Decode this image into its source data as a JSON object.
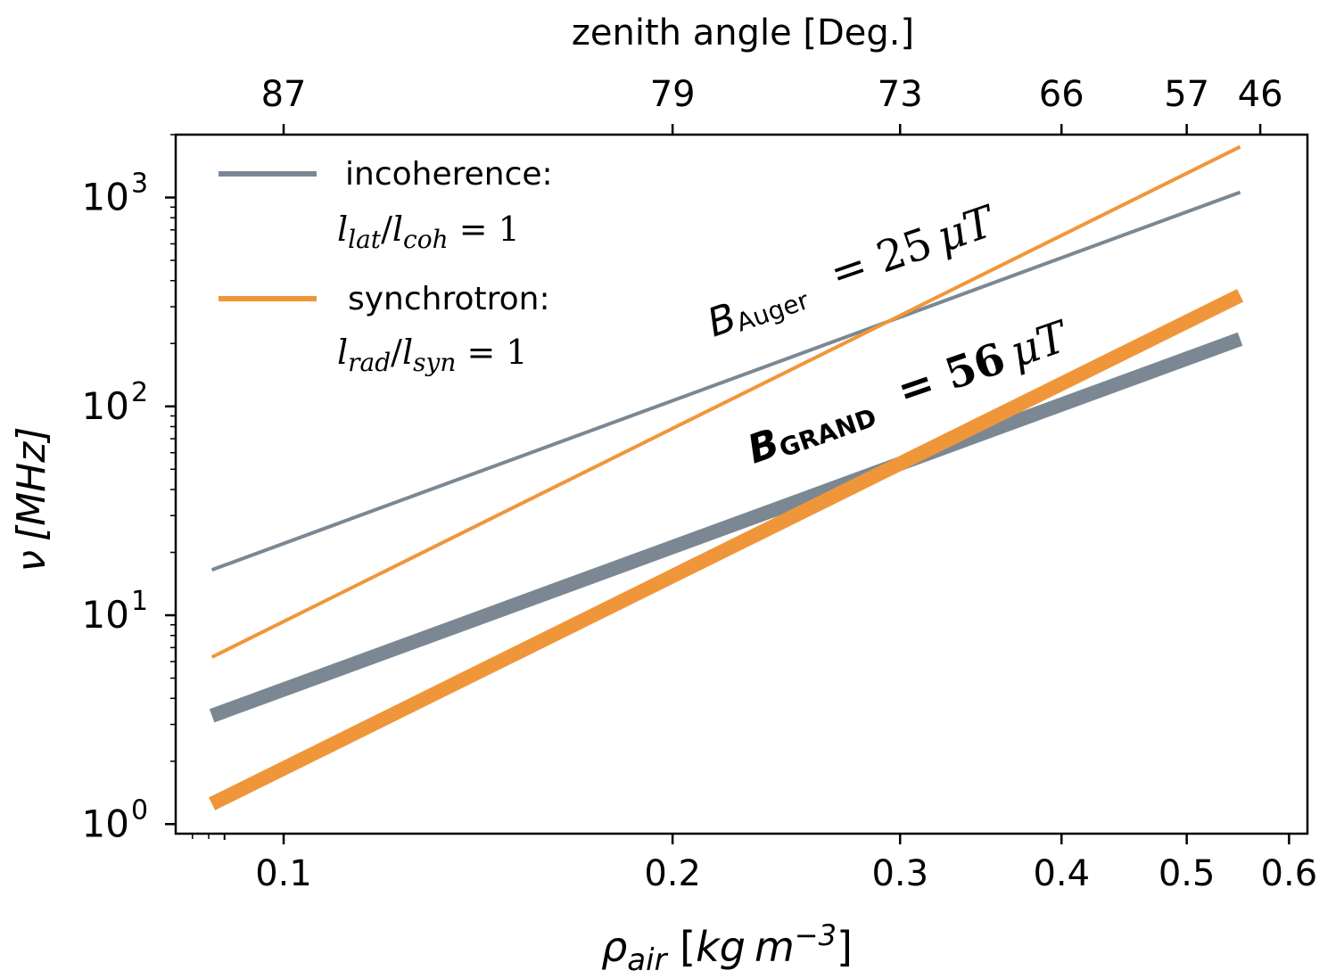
{
  "chart_data": {
    "type": "line",
    "xscale": "log",
    "yscale": "log",
    "xlim": [
      0.0825,
      0.62
    ],
    "ylim": [
      0.9,
      2000
    ],
    "x_ticks": [
      {
        "value": 0.1,
        "label": "0.1"
      },
      {
        "value": 0.2,
        "label": "0.2"
      },
      {
        "value": 0.3,
        "label": "0.3"
      },
      {
        "value": 0.4,
        "label": "0.4"
      },
      {
        "value": 0.5,
        "label": "0.5"
      },
      {
        "value": 0.6,
        "label": "0.6"
      }
    ],
    "y_ticks": [
      {
        "value": 1,
        "base": "10",
        "exp": "0"
      },
      {
        "value": 10,
        "base": "10",
        "exp": "1"
      },
      {
        "value": 100,
        "base": "10",
        "exp": "2"
      },
      {
        "value": 1000,
        "base": "10",
        "exp": "3"
      }
    ],
    "top_axis": {
      "label": "zenith angle [Deg.]",
      "ticks": [
        {
          "rho": 0.1,
          "label": "87"
        },
        {
          "rho": 0.2,
          "label": "79"
        },
        {
          "rho": 0.3,
          "label": "73"
        },
        {
          "rho": 0.4,
          "label": "66"
        },
        {
          "rho": 0.5,
          "label": "57"
        },
        {
          "rho": 0.57,
          "label": "46"
        }
      ]
    },
    "xlabel": {
      "symbol": "ρ",
      "sub": "air",
      "unit_open": " [",
      "unit_kg": "kg",
      "unit_m": "m",
      "unit_exp": "−3",
      "unit_close": "]"
    },
    "ylabel": {
      "symbol": "ν",
      "unit": "[MHz]"
    },
    "series": [
      {
        "name": "incoherence, B_Auger = 25 μT",
        "group": "incoherence",
        "color": "#7b8894",
        "weight": "thin",
        "x": [
          0.088,
          0.55
        ],
        "y": [
          16.5,
          1060
        ]
      },
      {
        "name": "synchrotron, B_Auger = 25 μT",
        "group": "synchrotron",
        "color": "#f0963a",
        "weight": "thin",
        "x": [
          0.088,
          0.55
        ],
        "y": [
          6.3,
          1750
        ]
      },
      {
        "name": "incoherence, B_GRAND = 56 μT",
        "group": "incoherence",
        "color": "#7b8894",
        "weight": "thick",
        "x": [
          0.088,
          0.55
        ],
        "y": [
          3.3,
          210
        ]
      },
      {
        "name": "synchrotron, B_GRAND = 56 μT",
        "group": "synchrotron",
        "color": "#f0963a",
        "weight": "thick",
        "x": [
          0.088,
          0.55
        ],
        "y": [
          1.25,
          340
        ]
      }
    ],
    "legend": {
      "position": "top-left",
      "entries": [
        {
          "label": "incoherence:",
          "color": "#7b8894",
          "eq": {
            "a": "l",
            "a_sub": "lat",
            "b": "l",
            "b_sub": "coh",
            "rhs": " = 1"
          }
        },
        {
          "label": "synchrotron:",
          "color": "#f0963a",
          "eq": {
            "a": "l",
            "a_sub": "rad",
            "b": "l",
            "b_sub": "syn",
            "rhs": " = 1"
          }
        }
      ]
    },
    "annotations": [
      {
        "id": "auger",
        "text": "B",
        "sub": "Auger",
        "eq": "= 25",
        "unit": "μT",
        "bold": false
      },
      {
        "id": "grand",
        "text": "B",
        "sub": "GRAND",
        "eq": "= 56",
        "unit": "μT",
        "bold": true
      }
    ]
  }
}
